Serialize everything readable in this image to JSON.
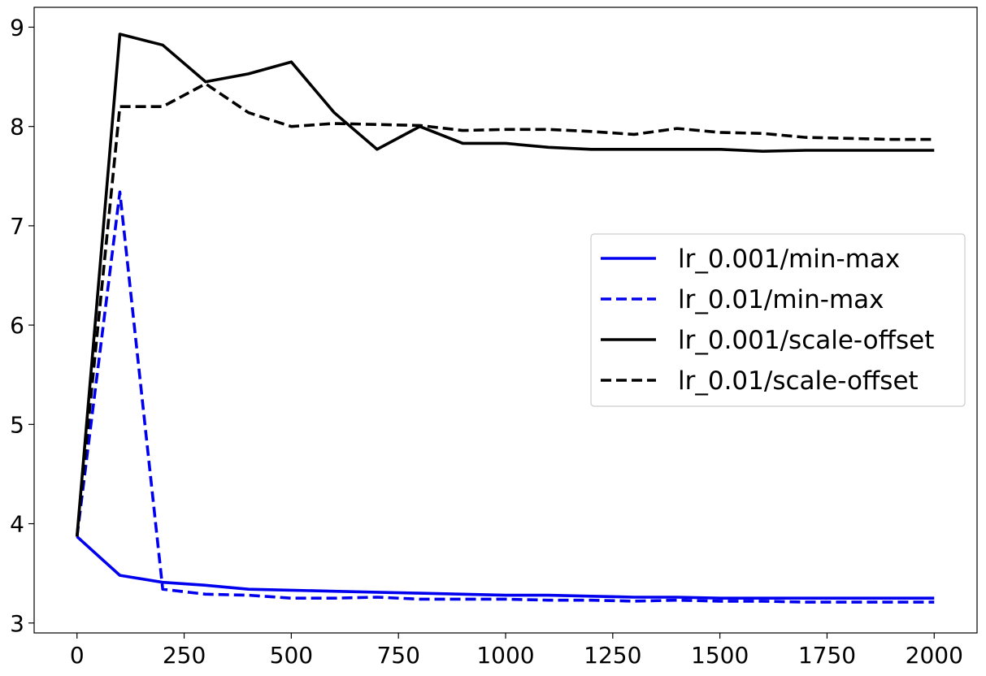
{
  "chart_data": {
    "type": "line",
    "title": "",
    "xlabel": "",
    "ylabel": "",
    "xlim": [
      -100,
      2100
    ],
    "ylim": [
      2.9,
      9.2
    ],
    "xticks": [
      0,
      250,
      500,
      750,
      1000,
      1250,
      1500,
      1750,
      2000
    ],
    "yticks": [
      3,
      4,
      5,
      6,
      7,
      8,
      9
    ],
    "xtick_labels": [
      "0",
      "250",
      "500",
      "750",
      "1000",
      "1250",
      "1500",
      "1750",
      "2000"
    ],
    "ytick_labels": [
      "3",
      "4",
      "5",
      "6",
      "7",
      "8",
      "9"
    ],
    "grid": false,
    "legend_position": "center-right",
    "x": [
      0,
      100,
      200,
      300,
      400,
      500,
      600,
      700,
      800,
      900,
      1000,
      1100,
      1200,
      1300,
      1400,
      1500,
      1600,
      1700,
      1800,
      1900,
      2000
    ],
    "series": [
      {
        "name": "lr_0.001/min-max",
        "color": "#0000ee",
        "style": "solid",
        "values": [
          3.87,
          3.48,
          3.41,
          3.38,
          3.34,
          3.33,
          3.32,
          3.31,
          3.3,
          3.29,
          3.28,
          3.28,
          3.27,
          3.26,
          3.26,
          3.25,
          3.25,
          3.25,
          3.25,
          3.25,
          3.25
        ]
      },
      {
        "name": "lr_0.01/min-max",
        "color": "#0000ee",
        "style": "dashed",
        "values": [
          3.87,
          7.34,
          3.34,
          3.29,
          3.28,
          3.25,
          3.25,
          3.26,
          3.24,
          3.24,
          3.24,
          3.23,
          3.23,
          3.22,
          3.23,
          3.22,
          3.22,
          3.21,
          3.21,
          3.21,
          3.21
        ]
      },
      {
        "name": "lr_0.001/scale-offset",
        "color": "#000000",
        "style": "solid",
        "values": [
          3.87,
          8.93,
          8.82,
          8.45,
          8.53,
          8.65,
          8.14,
          7.77,
          8.0,
          7.83,
          7.83,
          7.79,
          7.77,
          7.77,
          7.77,
          7.77,
          7.75,
          7.76,
          7.76,
          7.76,
          7.76
        ]
      },
      {
        "name": "lr_0.01/scale-offset",
        "color": "#000000",
        "style": "dashed",
        "values": [
          3.87,
          8.2,
          8.2,
          8.43,
          8.14,
          8.0,
          8.03,
          8.02,
          8.01,
          7.96,
          7.97,
          7.97,
          7.95,
          7.92,
          7.98,
          7.94,
          7.93,
          7.89,
          7.88,
          7.87,
          7.87
        ]
      }
    ]
  }
}
